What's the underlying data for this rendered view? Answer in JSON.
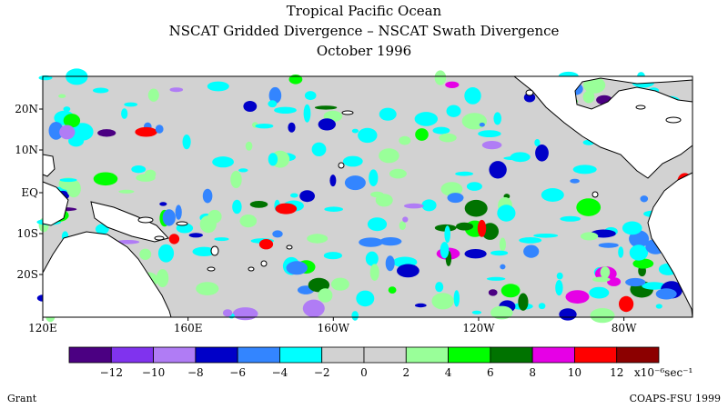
{
  "title": {
    "line1": "Tropical Pacific Ocean",
    "line2": "NSCAT Gridded Divergence – NSCAT Swath Divergence",
    "line3": "October 1996"
  },
  "map": {
    "lat_labels": [
      "20N",
      "10N",
      "EQ",
      "10S",
      "20S"
    ],
    "lon_labels": [
      "120E",
      "160E",
      "160W",
      "120W",
      "80W"
    ],
    "background_color": "#d2d2d2",
    "land_color": "#ffffff",
    "coast_color": "#000000"
  },
  "colorbar": {
    "colors": [
      "#4b0082",
      "#8033ee",
      "#b07cf5",
      "#0000c8",
      "#3385ff",
      "#00ffff",
      "#d2d2d2",
      "#d2d2d2",
      "#99ff99",
      "#00ff00",
      "#007300",
      "#e600e6",
      "#ff0000",
      "#8c0000"
    ],
    "tick_labels": [
      "−12",
      "−10",
      "−8",
      "−6",
      "−4",
      "−2",
      "0",
      "2",
      "4",
      "6",
      "8",
      "10",
      "12"
    ],
    "units": "x10⁻⁶sec⁻¹"
  },
  "credits": {
    "left": "Grant",
    "right": "COAPS-FSU 1999"
  }
}
